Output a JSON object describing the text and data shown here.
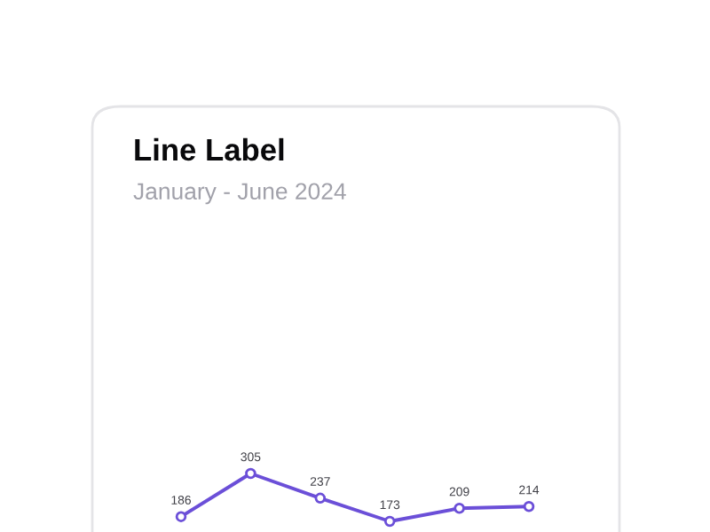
{
  "chart_data": {
    "type": "line",
    "title": "Line Label",
    "subtitle": "January - June 2024",
    "categories": [
      null,
      null,
      null,
      null,
      null,
      null
    ],
    "series": [
      {
        "color": "#6b4fd8",
        "values": [
          186,
          305,
          237,
          173,
          209,
          214
        ]
      }
    ],
    "marker": "circle",
    "data_labels": true,
    "legend": false,
    "grid": false
  }
}
